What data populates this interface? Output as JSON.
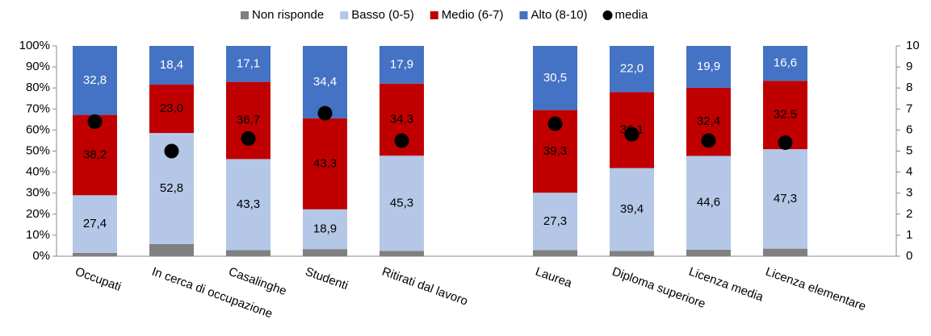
{
  "chart_data": {
    "type": "bar",
    "stacked": true,
    "categories": [
      "Occupati",
      "In cerca di  occupazione",
      "Casalinghe",
      "Studenti",
      "Ritirati dal lavoro",
      null,
      "Laurea",
      "Diploma superiore",
      "Licenza media",
      "Licenza elementare",
      null
    ],
    "series": [
      {
        "name": "Non risponde",
        "color": "#808080",
        "values": [
          1.6,
          5.8,
          2.9,
          3.4,
          2.5,
          null,
          2.9,
          2.5,
          3.1,
          3.6,
          null
        ]
      },
      {
        "name": "Basso (0-5)",
        "color": "#b4c7e7",
        "values": [
          27.4,
          52.8,
          43.3,
          18.9,
          45.3,
          null,
          27.3,
          39.4,
          44.6,
          47.3,
          null
        ],
        "value_labels": [
          "27,4",
          "52,8",
          "43,3",
          "18,9",
          "45,3",
          null,
          "27,3",
          "39,4",
          "44,6",
          "47,3",
          null
        ]
      },
      {
        "name": "Medio (6-7)",
        "color": "#c00000",
        "values": [
          38.2,
          23.0,
          36.7,
          43.3,
          34.3,
          null,
          39.3,
          36.1,
          32.4,
          32.5,
          null
        ],
        "value_labels": [
          "38,2",
          "23,0",
          "36,7",
          "43,3",
          "34,3",
          null,
          "39,3",
          "36,1",
          "32,4",
          "32,5",
          null
        ]
      },
      {
        "name": "Alto (8-10)",
        "color": "#4472c4",
        "values": [
          32.8,
          18.4,
          17.1,
          34.4,
          17.9,
          null,
          30.5,
          22.0,
          19.9,
          16.6,
          null
        ],
        "value_labels": [
          "32,8",
          "18,4",
          "17,1",
          "34,4",
          "17,9",
          null,
          "30,5",
          "22,0",
          "19,9",
          "16,6",
          null
        ]
      },
      {
        "name": "media",
        "color": "#000000",
        "type": "scatter",
        "axis": "y2",
        "values": [
          6.4,
          5.0,
          5.6,
          6.8,
          5.5,
          null,
          6.3,
          5.8,
          5.5,
          5.4,
          null
        ]
      }
    ],
    "ylim": [
      0,
      100
    ],
    "yticks": [
      {
        "value": 0,
        "label": "0%"
      },
      {
        "value": 10,
        "label": "10%"
      },
      {
        "value": 20,
        "label": "20%"
      },
      {
        "value": 30,
        "label": "30%"
      },
      {
        "value": 40,
        "label": "40%"
      },
      {
        "value": 50,
        "label": "50%"
      },
      {
        "value": 60,
        "label": "60%"
      },
      {
        "value": 70,
        "label": "70%"
      },
      {
        "value": 80,
        "label": "80%"
      },
      {
        "value": 90,
        "label": "90%"
      },
      {
        "value": 100,
        "label": "100%"
      }
    ],
    "y2lim": [
      0,
      10
    ],
    "y2ticks": [
      0,
      1,
      2,
      3,
      4,
      5,
      6,
      7,
      8,
      9,
      10
    ],
    "legend": "top",
    "grid": false
  }
}
